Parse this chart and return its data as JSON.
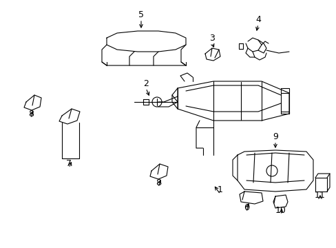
{
  "bg_color": "#ffffff",
  "line_color": "#000000",
  "line_width": 0.8,
  "label_fontsize": 9,
  "fig_width": 4.89,
  "fig_height": 3.6,
  "dpi": 100
}
